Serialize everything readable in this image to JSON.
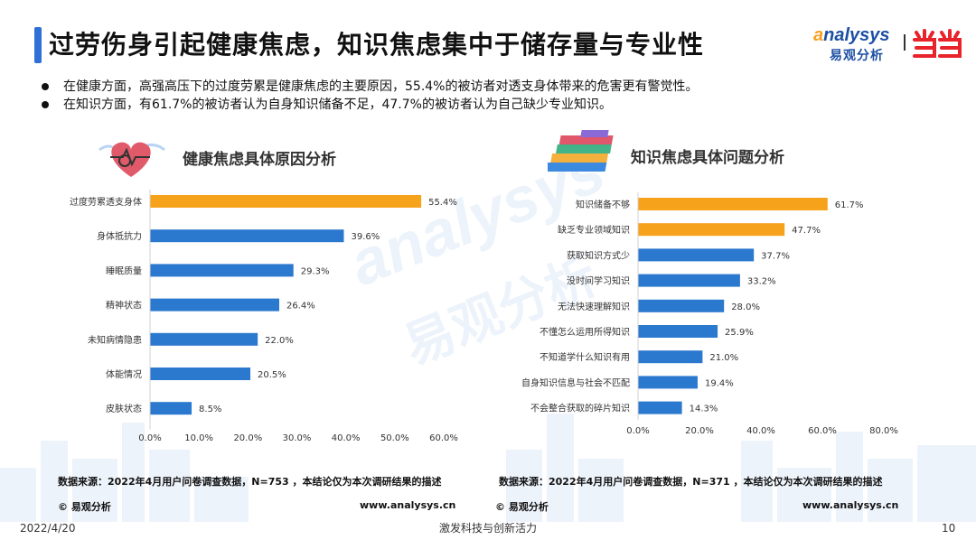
{
  "header": {
    "title": "过劳伤身引起健康焦虑，知识焦虑集中于储存量与专业性",
    "logo_en_prefix": "a",
    "logo_en_rest": "nalysys",
    "logo_cn": "易观分析"
  },
  "bullets": [
    "在健康方面，高强高压下的过度劳累是健康焦虑的主要原因，55.4%的被访者对透支身体带来的危害更有警觉性。",
    "在知识方面，有61.7%的被访者认为自身知识储备不足，47.7%的被访者认为自己缺少专业知识。"
  ],
  "watermark": {
    "en": "analysys",
    "cn": "易观分析"
  },
  "left_section": {
    "title": "健康焦虑具体原因分析",
    "source": "数据来源：2022年4月用户问卷调查数据，N=753 ，本结论仅为本次调研结果的描述",
    "copyright": "© 易观分析",
    "site": "www.analysys.cn"
  },
  "right_section": {
    "title": "知识焦虑具体问题分析",
    "source": "数据来源：2022年4月用户问卷调查数据，N=371 ，本结论仅为本次调研结果的描述",
    "copyright": "© 易观分析",
    "site": "www.analysys.cn"
  },
  "chart_data": [
    {
      "type": "bar",
      "orientation": "horizontal",
      "categories": [
        "过度劳累透支身体",
        "身体抵抗力",
        "睡眠质量",
        "精神状态",
        "未知病情隐患",
        "体能情况",
        "皮肤状态"
      ],
      "values": [
        55.4,
        39.6,
        29.3,
        26.4,
        22.0,
        20.5,
        8.5
      ],
      "value_labels": [
        "55.4%",
        "39.6%",
        "29.3%",
        "26.4%",
        "22.0%",
        "20.5%",
        "8.5%"
      ],
      "highlight_count": 1,
      "xlim": [
        0,
        60
      ],
      "ticks": [
        0,
        10,
        20,
        30,
        40,
        50,
        60
      ],
      "tick_labels": [
        "0.0%",
        "10.0%",
        "20.0%",
        "30.0%",
        "40.0%",
        "50.0%",
        "60.0%"
      ],
      "colors": {
        "highlight": "#f7a21b",
        "normal": "#2b78cf"
      },
      "grid": false
    },
    {
      "type": "bar",
      "orientation": "horizontal",
      "categories": [
        "知识储备不够",
        "缺乏专业领域知识",
        "获取知识方式少",
        "没时间学习知识",
        "无法快速理解知识",
        "不懂怎么运用所得知识",
        "不知道学什么知识有用",
        "自身知识信息与社会不匹配",
        "不会整合获取的碎片知识"
      ],
      "values": [
        61.7,
        47.7,
        37.7,
        33.2,
        28.0,
        25.9,
        21.0,
        19.4,
        14.3
      ],
      "value_labels": [
        "61.7%",
        "47.7%",
        "37.7%",
        "33.2%",
        "28.0%",
        "25.9%",
        "21.0%",
        "19.4%",
        "14.3%"
      ],
      "highlight_count": 2,
      "xlim": [
        0,
        80
      ],
      "ticks": [
        0,
        20,
        40,
        60,
        80
      ],
      "tick_labels": [
        "0.0%",
        "20.0%",
        "40.0%",
        "60.0%",
        "80.0%"
      ],
      "colors": {
        "highlight": "#f7a21b",
        "normal": "#2b78cf"
      },
      "grid": false
    }
  ],
  "footer": {
    "date": "2022/4/20",
    "slogan": "激发科技与创新活力",
    "page": "10"
  }
}
